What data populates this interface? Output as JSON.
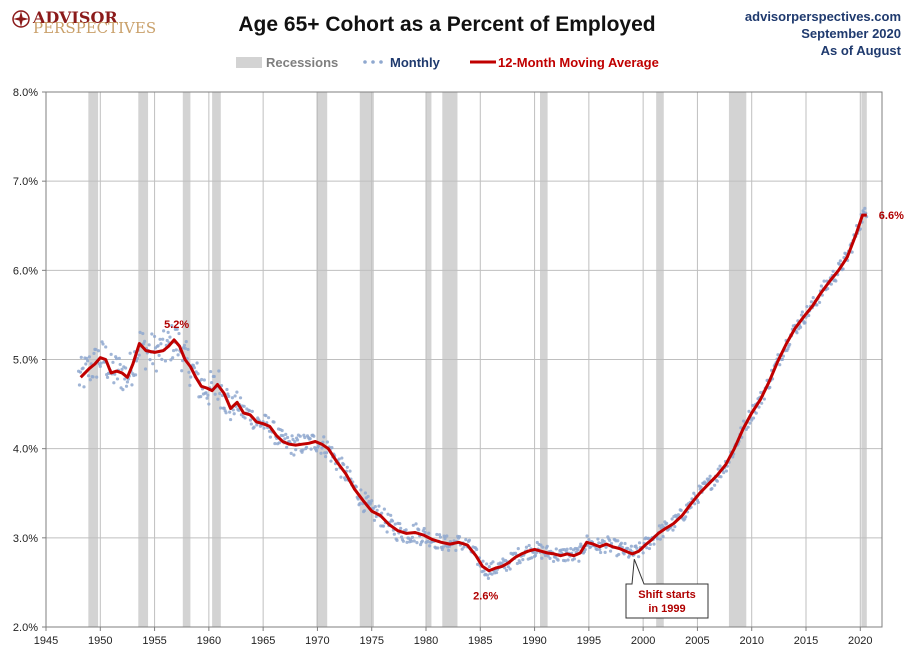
{
  "header": {
    "logo_line1": "ADVISOR",
    "logo_line2": "PERSPECTIVES",
    "title": "Age 65+ Cohort as a Percent of Employed",
    "site": "advisorperspectives.com",
    "date": "September 2020",
    "as_of": "As of August"
  },
  "legend": {
    "recessions": "Recessions",
    "monthly": "Monthly",
    "moving_average": "12-Month Moving Average"
  },
  "colors": {
    "recession": "#d3d3d3",
    "monthly": "#8fa8cf",
    "moving_average": "#c00000",
    "annotation": "#b00000",
    "grid": "#bfbfbf"
  },
  "chart_data": {
    "type": "line",
    "xlim": [
      1945,
      2022
    ],
    "ylim": [
      2.0,
      8.0
    ],
    "x_ticks": [
      "1945",
      "1950",
      "1955",
      "1960",
      "1965",
      "1970",
      "1975",
      "1980",
      "1985",
      "1990",
      "1995",
      "2000",
      "2005",
      "2010",
      "2015",
      "2020"
    ],
    "y_ticks": [
      "2.0%",
      "3.0%",
      "4.0%",
      "5.0%",
      "6.0%",
      "7.0%",
      "8.0%"
    ],
    "grid": true,
    "legend_position": "top",
    "recessions": [
      [
        1948.9,
        1949.8
      ],
      [
        1953.5,
        1954.4
      ],
      [
        1957.6,
        1958.3
      ],
      [
        1960.3,
        1961.1
      ],
      [
        1969.9,
        1970.9
      ],
      [
        1973.9,
        1975.2
      ],
      [
        1980.0,
        1980.5
      ],
      [
        1981.5,
        1982.9
      ],
      [
        1990.5,
        1991.2
      ],
      [
        2001.2,
        2001.9
      ],
      [
        2007.9,
        2009.5
      ],
      [
        2020.1,
        2020.6
      ]
    ],
    "series": [
      {
        "name": "12-Month Moving Average",
        "x": [
          1948.2,
          1949.0,
          1949.5,
          1950.0,
          1950.5,
          1951.0,
          1951.5,
          1952.0,
          1952.5,
          1953.0,
          1953.6,
          1954.2,
          1955.0,
          1955.8,
          1956.3,
          1956.8,
          1957.3,
          1957.8,
          1958.3,
          1958.8,
          1959.3,
          1959.8,
          1960.3,
          1960.8,
          1961.4,
          1962.0,
          1962.6,
          1963.2,
          1963.8,
          1964.4,
          1965.0,
          1965.6,
          1966.2,
          1966.8,
          1967.4,
          1968.0,
          1968.6,
          1969.2,
          1969.8,
          1970.4,
          1971.0,
          1971.8,
          1972.6,
          1973.4,
          1974.2,
          1975.0,
          1975.8,
          1976.6,
          1977.4,
          1978.2,
          1979.0,
          1979.8,
          1980.6,
          1981.4,
          1982.2,
          1983.0,
          1983.8,
          1984.6,
          1985.2,
          1985.8,
          1986.4,
          1987.0,
          1987.6,
          1988.2,
          1988.8,
          1989.4,
          1990.0,
          1990.6,
          1991.2,
          1991.8,
          1992.4,
          1993.0,
          1993.6,
          1994.2,
          1994.8,
          1995.4,
          1996.0,
          1996.6,
          1997.2,
          1997.8,
          1998.4,
          1999.0,
          1999.6,
          2000.2,
          2000.8,
          2001.4,
          2002.0,
          2002.8,
          2003.6,
          2004.4,
          2005.2,
          2006.0,
          2006.8,
          2007.6,
          2008.4,
          2009.2,
          2010.0,
          2010.8,
          2011.6,
          2012.4,
          2013.2,
          2014.0,
          2014.8,
          2015.6,
          2016.4,
          2017.2,
          2018.0,
          2018.8,
          2019.6,
          2020.2,
          2020.6
        ],
        "values": [
          4.8,
          4.9,
          4.95,
          5.02,
          5.0,
          4.85,
          4.87,
          4.85,
          4.8,
          4.95,
          5.18,
          5.1,
          5.08,
          5.1,
          5.15,
          5.22,
          5.15,
          5.0,
          4.92,
          4.8,
          4.7,
          4.68,
          4.65,
          4.72,
          4.62,
          4.45,
          4.52,
          4.4,
          4.38,
          4.3,
          4.28,
          4.25,
          4.15,
          4.08,
          4.05,
          4.04,
          4.05,
          4.06,
          4.08,
          4.05,
          4.0,
          3.85,
          3.72,
          3.55,
          3.42,
          3.3,
          3.25,
          3.15,
          3.08,
          3.05,
          3.06,
          3.03,
          2.98,
          2.95,
          2.93,
          2.95,
          2.92,
          2.8,
          2.68,
          2.63,
          2.66,
          2.68,
          2.72,
          2.78,
          2.82,
          2.85,
          2.87,
          2.85,
          2.83,
          2.82,
          2.8,
          2.82,
          2.8,
          2.83,
          2.95,
          2.93,
          2.9,
          2.93,
          2.9,
          2.88,
          2.85,
          2.82,
          2.85,
          2.92,
          2.98,
          3.05,
          3.1,
          3.16,
          3.25,
          3.38,
          3.5,
          3.6,
          3.7,
          3.82,
          4.0,
          4.22,
          4.4,
          4.55,
          4.75,
          4.98,
          5.18,
          5.35,
          5.48,
          5.6,
          5.75,
          5.88,
          6.0,
          6.15,
          6.4,
          6.62,
          6.62
        ]
      },
      {
        "name": "Monthly",
        "note": "Scattered monthly points generated around the moving average by the drawing script"
      }
    ],
    "annotations": [
      {
        "text": "5.2%",
        "x": 1956.8,
        "y": 5.22
      },
      {
        "text": "2.6%",
        "x": 1985.5,
        "y": 2.6
      },
      {
        "text": "6.6%",
        "x": 2020.6,
        "y": 6.62
      }
    ],
    "callout": {
      "line1": "Shift starts",
      "line2": "in 1999",
      "x": 1999.0,
      "y": 2.85
    }
  }
}
